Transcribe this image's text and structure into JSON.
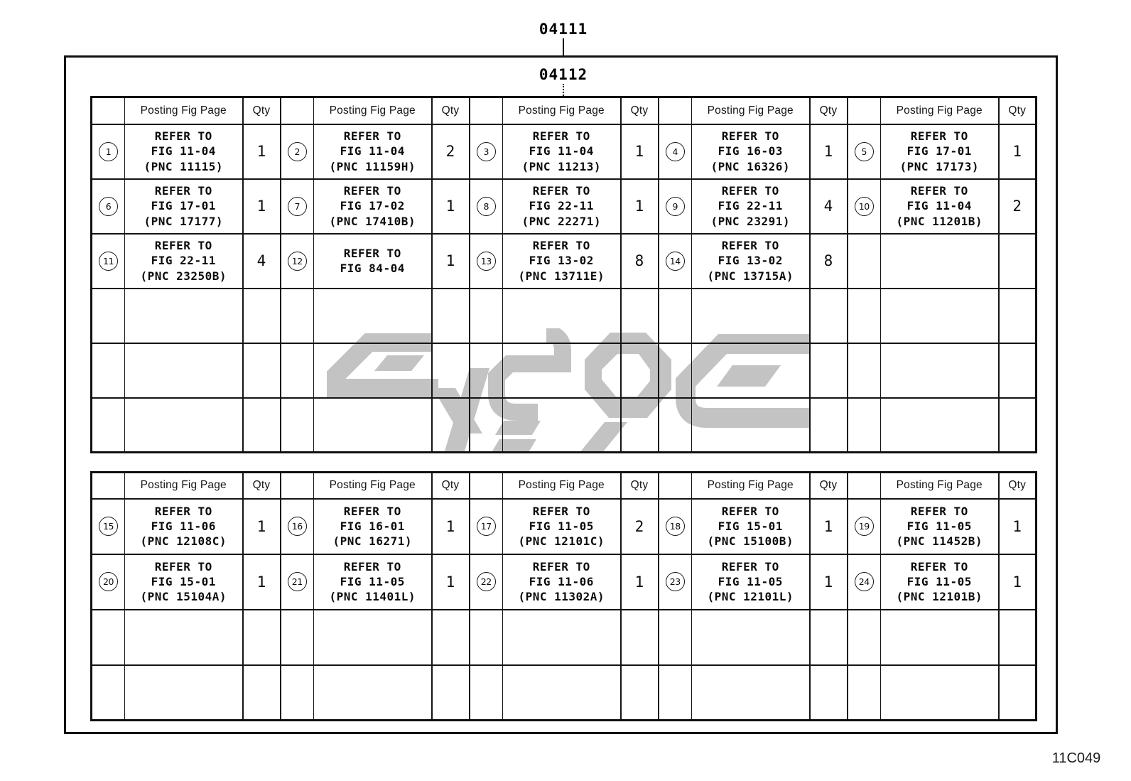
{
  "page": {
    "part_number_top": "04111",
    "part_number_sub": "04112",
    "drawing_code": "11C049"
  },
  "colors": {
    "line": "#111111",
    "watermark": "#c3c3c3",
    "background": "#ffffff"
  },
  "headers": {
    "fig_page": "Posting Fig Page",
    "qty": "Qty"
  },
  "groups_per_row": 5,
  "watermark": {
    "name": "gray-arabic-logo-watermark",
    "color": "#c3c3c3"
  },
  "tables": [
    {
      "name": "upper",
      "empty_rows": 3,
      "rows": [
        [
          {
            "num": "1",
            "ref": [
              "REFER TO",
              "FIG 11-04",
              "(PNC 11115)"
            ],
            "qty": "1"
          },
          {
            "num": "2",
            "ref": [
              "REFER TO",
              "FIG 11-04",
              "(PNC 11159H)"
            ],
            "qty": "2"
          },
          {
            "num": "3",
            "ref": [
              "REFER TO",
              "FIG 11-04",
              "(PNC 11213)"
            ],
            "qty": "1"
          },
          {
            "num": "4",
            "ref": [
              "REFER TO",
              "FIG 16-03",
              "(PNC 16326)"
            ],
            "qty": "1"
          },
          {
            "num": "5",
            "ref": [
              "REFER TO",
              "FIG 17-01",
              "(PNC 17173)"
            ],
            "qty": "1"
          }
        ],
        [
          {
            "num": "6",
            "ref": [
              "REFER TO",
              "FIG 17-01",
              "(PNC 17177)"
            ],
            "qty": "1"
          },
          {
            "num": "7",
            "ref": [
              "REFER TO",
              "FIG 17-02",
              "(PNC 17410B)"
            ],
            "qty": "1"
          },
          {
            "num": "8",
            "ref": [
              "REFER TO",
              "FIG 22-11",
              "(PNC 22271)"
            ],
            "qty": "1"
          },
          {
            "num": "9",
            "ref": [
              "REFER TO",
              "FIG 22-11",
              "(PNC 23291)"
            ],
            "qty": "4"
          },
          {
            "num": "10",
            "ref": [
              "REFER TO",
              "FIG 11-04",
              "(PNC 11201B)"
            ],
            "qty": "2"
          }
        ],
        [
          {
            "num": "11",
            "ref": [
              "REFER TO",
              "FIG 22-11",
              "(PNC 23250B)"
            ],
            "qty": "4"
          },
          {
            "num": "12",
            "ref": [
              "REFER TO",
              "FIG 84-04"
            ],
            "qty": "1"
          },
          {
            "num": "13",
            "ref": [
              "REFER TO",
              "FIG 13-02",
              "(PNC 13711E)"
            ],
            "qty": "8"
          },
          {
            "num": "14",
            "ref": [
              "REFER TO",
              "FIG 13-02",
              "(PNC 13715A)"
            ],
            "qty": "8"
          },
          null
        ]
      ]
    },
    {
      "name": "lower",
      "empty_rows": 2,
      "rows": [
        [
          {
            "num": "15",
            "ref": [
              "REFER TO",
              "FIG 11-06",
              "(PNC 12108C)"
            ],
            "qty": "1"
          },
          {
            "num": "16",
            "ref": [
              "REFER TO",
              "FIG 16-01",
              "(PNC 16271)"
            ],
            "qty": "1"
          },
          {
            "num": "17",
            "ref": [
              "REFER TO",
              "FIG 11-05",
              "(PNC 12101C)"
            ],
            "qty": "2"
          },
          {
            "num": "18",
            "ref": [
              "REFER TO",
              "FIG 15-01",
              "(PNC 15100B)"
            ],
            "qty": "1"
          },
          {
            "num": "19",
            "ref": [
              "REFER TO",
              "FIG 11-05",
              "(PNC 11452B)"
            ],
            "qty": "1"
          }
        ],
        [
          {
            "num": "20",
            "ref": [
              "REFER TO",
              "FIG 15-01",
              "(PNC 15104A)"
            ],
            "qty": "1"
          },
          {
            "num": "21",
            "ref": [
              "REFER TO",
              "FIG 11-05",
              "(PNC 11401L)"
            ],
            "qty": "1"
          },
          {
            "num": "22",
            "ref": [
              "REFER TO",
              "FIG 11-06",
              "(PNC 11302A)"
            ],
            "qty": "1"
          },
          {
            "num": "23",
            "ref": [
              "REFER TO",
              "FIG 11-05",
              "(PNC 12101L)"
            ],
            "qty": "1"
          },
          {
            "num": "24",
            "ref": [
              "REFER TO",
              "FIG 11-05",
              "(PNC 12101B)"
            ],
            "qty": "1"
          }
        ]
      ]
    }
  ]
}
